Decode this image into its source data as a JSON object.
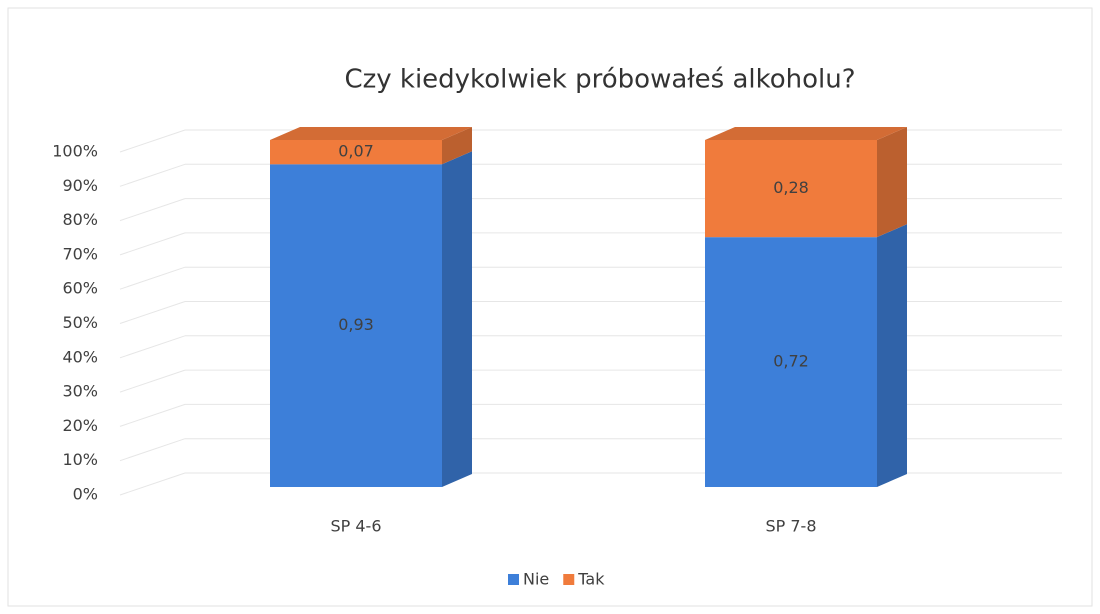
{
  "chart_data": {
    "type": "bar3d_stacked",
    "title": "Czy kiedykolwiek próbowałeś alkoholu?",
    "categories": [
      "SP 4-6",
      "SP 7-8"
    ],
    "series": [
      {
        "name": "Nie",
        "color": "#3d7fd9",
        "values": [
          93,
          72
        ],
        "value_labels": [
          "0,93",
          "0,72"
        ]
      },
      {
        "name": "Tak",
        "color": "#f07b3c",
        "values": [
          7,
          28
        ],
        "value_labels": [
          "0,07",
          "0,28"
        ]
      }
    ],
    "ylim": [
      0,
      100
    ],
    "yticks": [
      {
        "value": 0,
        "label": "0%"
      },
      {
        "value": 10,
        "label": "10%"
      },
      {
        "value": 20,
        "label": "20%"
      },
      {
        "value": 30,
        "label": "30%"
      },
      {
        "value": 40,
        "label": "40%"
      },
      {
        "value": 50,
        "label": "50%"
      },
      {
        "value": 60,
        "label": "60%"
      },
      {
        "value": 70,
        "label": "70%"
      },
      {
        "value": 80,
        "label": "80%"
      },
      {
        "value": 90,
        "label": "90%"
      },
      {
        "value": 100,
        "label": "100%"
      }
    ],
    "grid": true,
    "legend": "bottom"
  }
}
